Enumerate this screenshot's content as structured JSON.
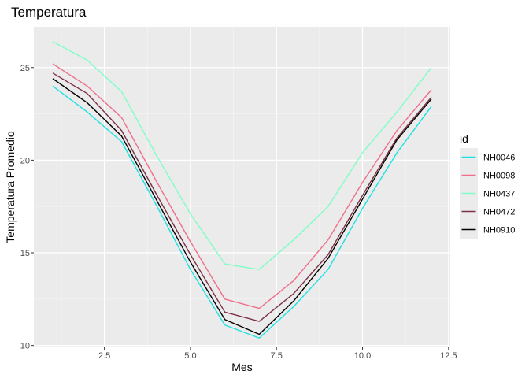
{
  "chart_data": {
    "type": "line",
    "title": "Temperatura",
    "xlabel": "Mes",
    "ylabel": "Temperatura Promedio",
    "xlim": [
      0.45,
      12.55
    ],
    "ylim": [
      9.9,
      27.2
    ],
    "x_ticks": [
      2.5,
      5.0,
      7.5,
      10.0,
      12.5
    ],
    "x_tick_labels": [
      "2.5",
      "5.0",
      "7.5",
      "10.0",
      "12.5"
    ],
    "y_ticks": [
      10,
      15,
      20,
      25
    ],
    "y_tick_labels": [
      "10",
      "15",
      "20",
      "25"
    ],
    "grid": true,
    "legend_title": "id",
    "legend_position": "right",
    "x": [
      1,
      2,
      3,
      4,
      5,
      6,
      7,
      8,
      9,
      10,
      11,
      12
    ],
    "series": [
      {
        "name": "NH0046",
        "color": "#1de1e1",
        "values": [
          24.0,
          22.6,
          21.0,
          17.6,
          14.1,
          11.1,
          10.4,
          12.1,
          14.1,
          17.4,
          20.4,
          22.9
        ]
      },
      {
        "name": "NH0098",
        "color": "#f06e8a",
        "values": [
          25.2,
          24.0,
          22.3,
          18.9,
          15.6,
          12.5,
          12.0,
          13.5,
          15.7,
          18.8,
          21.6,
          23.8
        ]
      },
      {
        "name": "NH0437",
        "color": "#7efec6",
        "values": [
          26.4,
          25.4,
          23.7,
          20.3,
          17.1,
          14.4,
          14.1,
          15.7,
          17.5,
          20.4,
          22.6,
          25.0
        ]
      },
      {
        "name": "NH0472",
        "color": "#7d3148",
        "values": [
          24.7,
          23.6,
          21.6,
          18.2,
          14.9,
          11.8,
          11.3,
          12.8,
          14.9,
          18.1,
          21.2,
          23.4
        ]
      },
      {
        "name": "NH0910",
        "color": "#000000",
        "values": [
          24.4,
          23.1,
          21.3,
          17.9,
          14.5,
          11.4,
          10.6,
          12.4,
          14.7,
          17.9,
          21.1,
          23.3
        ]
      }
    ]
  }
}
